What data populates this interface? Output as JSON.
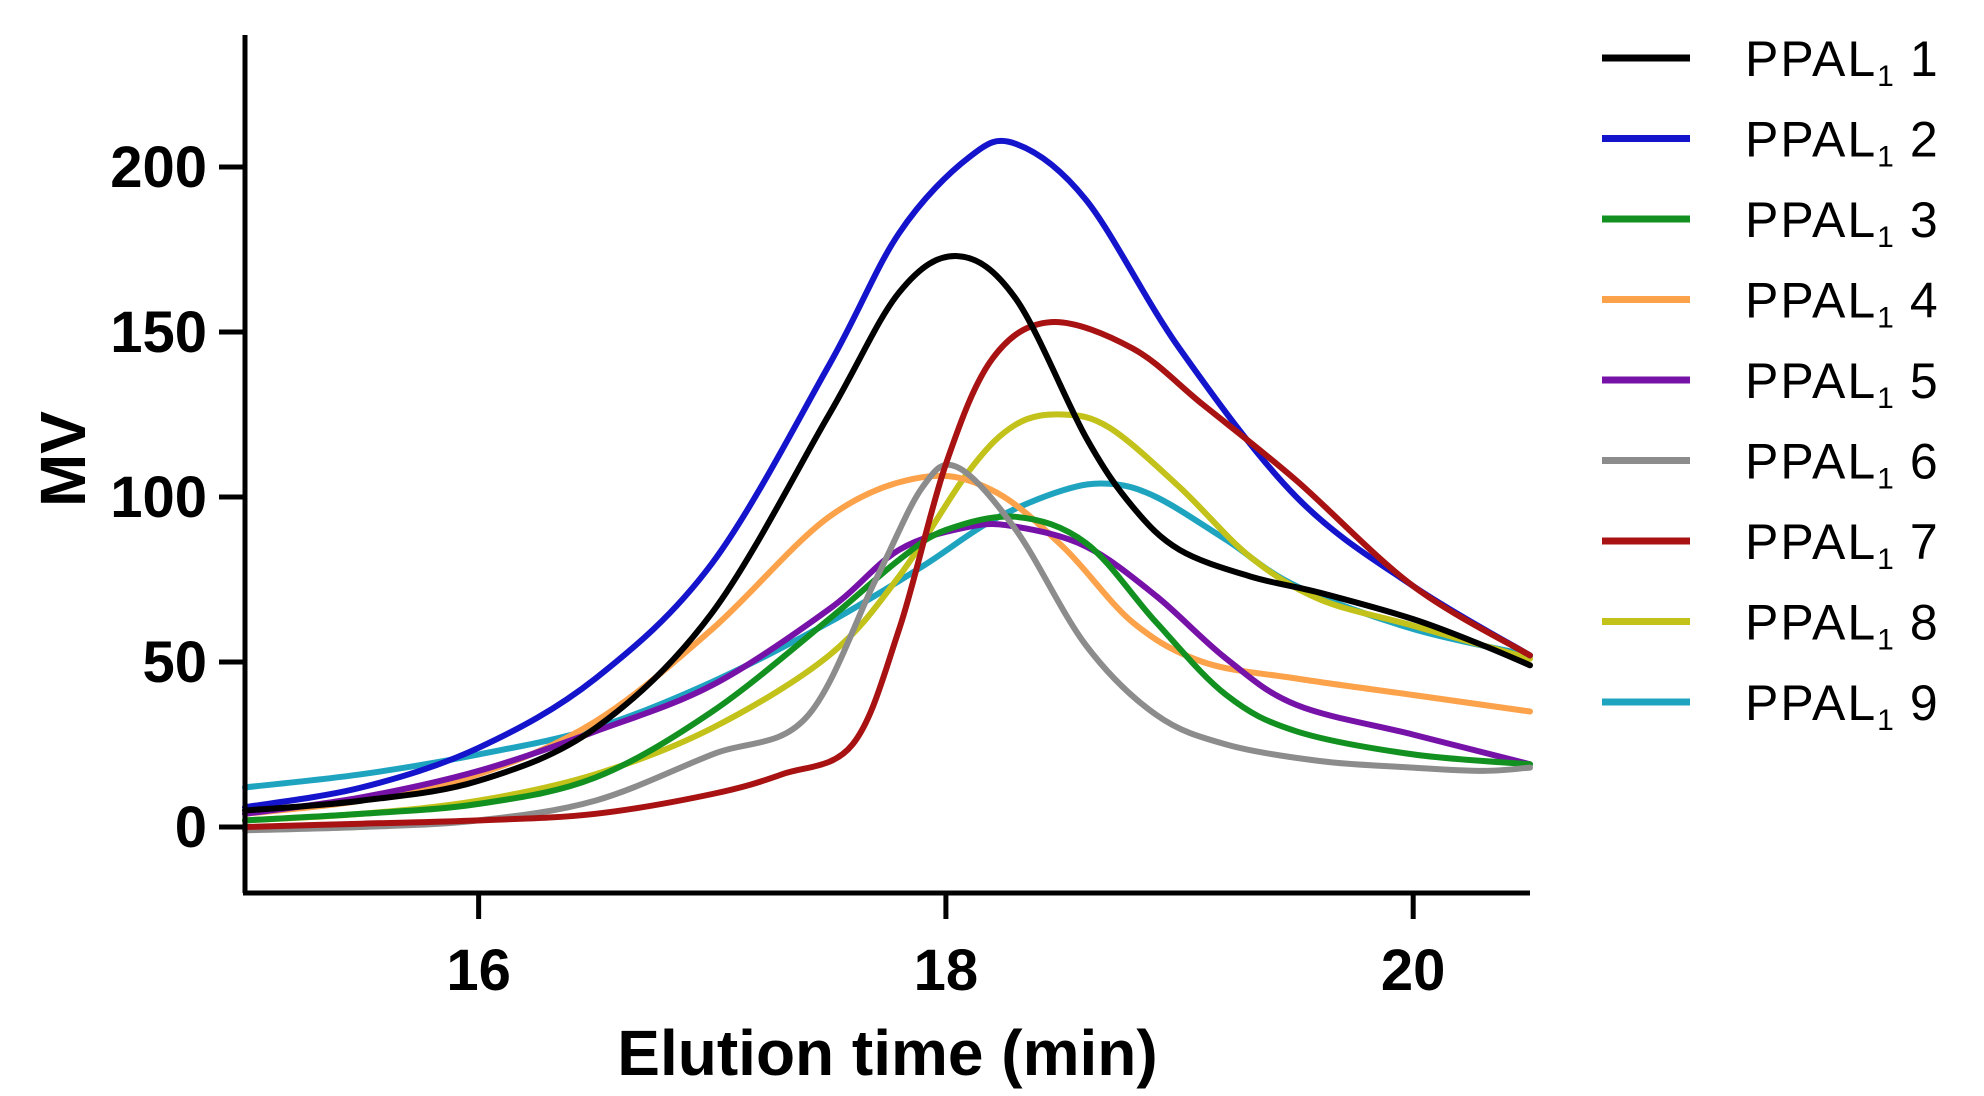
{
  "chart_data": {
    "type": "line",
    "title": "",
    "xlabel": "Elution time (min)",
    "ylabel": "MV",
    "xlim": [
      15.0,
      20.5
    ],
    "ylim": [
      -20,
      240
    ],
    "xticks": [
      16,
      18,
      20
    ],
    "yticks": [
      0,
      50,
      100,
      150,
      200
    ],
    "grid": false,
    "legend_position": "right",
    "series": [
      {
        "name": "PPAL1 1",
        "label_main": "PPAL",
        "label_sub": "1",
        "label_num": "1",
        "color": "#000000",
        "x": [
          15.0,
          15.5,
          16.0,
          16.5,
          17.0,
          17.5,
          17.8,
          18.05,
          18.3,
          18.6,
          18.8,
          19.0,
          19.3,
          19.6,
          20.0,
          20.3,
          20.5
        ],
        "y": [
          5,
          8,
          14,
          30,
          65,
          125,
          162,
          173,
          160,
          118,
          97,
          84,
          76,
          71,
          63,
          55,
          49
        ]
      },
      {
        "name": "PPAL1 2",
        "label_main": "PPAL",
        "label_sub": "1",
        "label_num": "2",
        "color": "#1414cc",
        "x": [
          15.0,
          15.5,
          16.0,
          16.5,
          17.0,
          17.5,
          17.8,
          18.1,
          18.3,
          18.6,
          19.0,
          19.5,
          20.0,
          20.5
        ],
        "y": [
          6,
          12,
          24,
          45,
          80,
          140,
          180,
          203,
          207,
          190,
          145,
          100,
          73,
          52
        ]
      },
      {
        "name": "PPAL1 3",
        "label_main": "PPAL",
        "label_sub": "1",
        "label_num": "3",
        "color": "#129120",
        "x": [
          15.0,
          15.5,
          16.0,
          16.5,
          17.0,
          17.5,
          17.8,
          18.0,
          18.3,
          18.6,
          18.9,
          19.2,
          19.5,
          20.0,
          20.5
        ],
        "y": [
          2,
          4,
          7,
          15,
          35,
          63,
          81,
          90,
          94,
          86,
          62,
          40,
          29,
          22,
          19
        ]
      },
      {
        "name": "PPAL1 4",
        "label_main": "PPAL",
        "label_sub": "1",
        "label_num": "4",
        "color": "#fba24a",
        "x": [
          15.0,
          15.5,
          16.0,
          16.5,
          17.0,
          17.5,
          17.9,
          18.2,
          18.5,
          18.8,
          19.1,
          19.5,
          20.0,
          20.5
        ],
        "y": [
          4,
          8,
          16,
          32,
          60,
          94,
          106,
          102,
          85,
          62,
          50,
          45,
          40,
          35
        ]
      },
      {
        "name": "PPAL1 5",
        "label_main": "PPAL",
        "label_sub": "1",
        "label_num": "5",
        "color": "#7712a8",
        "x": [
          15.0,
          15.5,
          16.0,
          16.5,
          17.0,
          17.5,
          17.8,
          18.1,
          18.3,
          18.6,
          18.9,
          19.2,
          19.5,
          20.0,
          20.5
        ],
        "y": [
          4,
          9,
          17,
          29,
          43,
          66,
          84,
          91,
          91,
          85,
          70,
          51,
          37,
          28,
          19
        ]
      },
      {
        "name": "PPAL1 6",
        "label_main": "PPAL",
        "label_sub": "1",
        "label_num": "6",
        "color": "#8c8c8c",
        "x": [
          15.0,
          15.5,
          16.0,
          16.5,
          17.0,
          17.4,
          17.7,
          17.9,
          18.05,
          18.3,
          18.6,
          18.9,
          19.2,
          19.6,
          20.0,
          20.3,
          20.5
        ],
        "y": [
          -1,
          0,
          2,
          8,
          22,
          33,
          75,
          103,
          109,
          90,
          55,
          34,
          25,
          20,
          18,
          17,
          18
        ]
      },
      {
        "name": "PPAL1 7",
        "label_main": "PPAL",
        "label_sub": "1",
        "label_num": "7",
        "color": "#a81212",
        "x": [
          15.0,
          15.5,
          16.0,
          16.5,
          17.0,
          17.3,
          17.6,
          17.8,
          18.0,
          18.2,
          18.45,
          18.8,
          19.1,
          19.5,
          20.0,
          20.5
        ],
        "y": [
          0,
          1,
          2,
          4,
          10,
          16,
          25,
          60,
          110,
          142,
          153,
          145,
          128,
          105,
          73,
          52
        ]
      },
      {
        "name": "PPAL1 8",
        "label_main": "PPAL",
        "label_sub": "1",
        "label_num": "8",
        "color": "#c2c21a",
        "x": [
          15.0,
          15.5,
          16.0,
          16.5,
          17.0,
          17.5,
          17.8,
          18.1,
          18.3,
          18.5,
          18.7,
          19.0,
          19.3,
          19.6,
          20.0,
          20.5
        ],
        "y": [
          2,
          4,
          8,
          16,
          30,
          52,
          76,
          108,
          122,
          125,
          121,
          103,
          82,
          69,
          61,
          51
        ]
      },
      {
        "name": "PPAL1 9",
        "label_main": "PPAL",
        "label_sub": "1",
        "label_num": "9",
        "color": "#1fa4c0",
        "x": [
          15.0,
          15.5,
          16.0,
          16.5,
          17.0,
          17.5,
          17.9,
          18.2,
          18.5,
          18.7,
          18.9,
          19.2,
          19.5,
          20.0,
          20.5
        ],
        "y": [
          12,
          16,
          22,
          30,
          44,
          62,
          79,
          93,
          102,
          104,
          100,
          87,
          73,
          60,
          52
        ]
      }
    ]
  }
}
